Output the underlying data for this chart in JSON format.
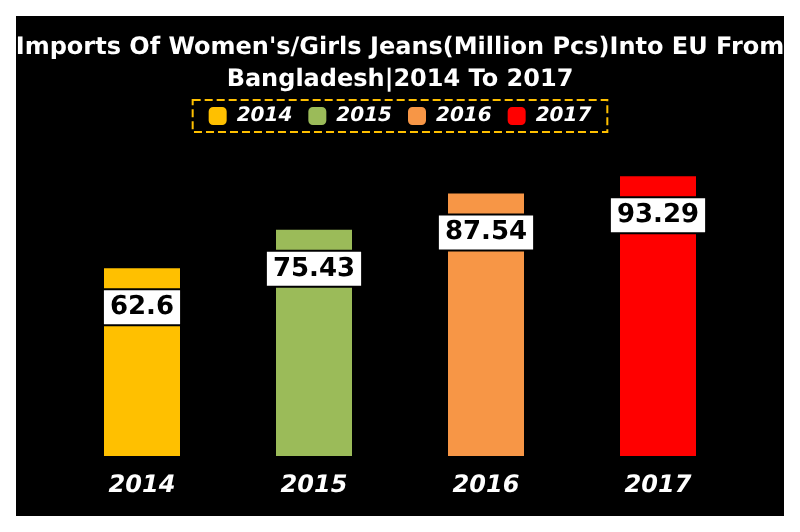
{
  "chart_data": {
    "type": "bar",
    "title": "Imports Of Women's/Girls Jeans(Million Pcs)Into EU From\nBangladesh|2014 To 2017",
    "categories": [
      "2014",
      "2015",
      "2016",
      "2017"
    ],
    "series": [
      {
        "name": "2014",
        "color": "#ffc000",
        "values": [
          62.6,
          null,
          null,
          null
        ]
      },
      {
        "name": "2015",
        "color": "#9bbb59",
        "values": [
          null,
          75.43,
          null,
          null
        ]
      },
      {
        "name": "2016",
        "color": "#f79646",
        "values": [
          null,
          null,
          87.54,
          null
        ]
      },
      {
        "name": "2017",
        "color": "#ff0000",
        "values": [
          null,
          null,
          null,
          93.29
        ]
      }
    ],
    "data_labels": true,
    "legend": "top"
  }
}
